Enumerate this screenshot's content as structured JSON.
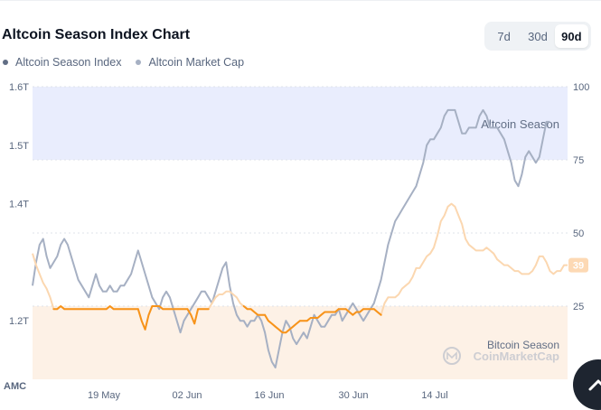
{
  "header": {
    "title": "Altcoin Season Index Chart",
    "ranges": [
      "7d",
      "30d",
      "90d"
    ],
    "active_range": "90d"
  },
  "legend": {
    "items": [
      {
        "label": "Altcoin Season Index",
        "color": "#616e85"
      },
      {
        "label": "Altcoin Market Cap",
        "color": "#a6b0c3"
      }
    ]
  },
  "zones": {
    "altcoin_season": {
      "label": "Altcoin Season",
      "from": 75,
      "to": 100,
      "color": "#e9edfd"
    },
    "bitcoin_season": {
      "label": "Bitcoin Season",
      "from": 0,
      "to": 25,
      "color": "#fdf1e6"
    }
  },
  "watermark": {
    "brand": "CoinMarketCap"
  },
  "corner_label": "AMC",
  "current_value_badge": "39",
  "colors": {
    "index_line": "#f7931a",
    "index_line_light": "#fbd7b0",
    "mcap_line": "#a6b0c3",
    "badge": "#fdd9b4"
  },
  "chart_data": {
    "type": "line",
    "x_ticks": [
      "19 May",
      "02 Jun",
      "16 Jun",
      "30 Jun",
      "14 Jul"
    ],
    "y_left": {
      "ticks": [
        "1.2T",
        "1.4T",
        "1.5T",
        "1.6T"
      ],
      "tick_values": [
        1.2,
        1.4,
        1.5,
        1.6
      ],
      "range": [
        1.1,
        1.6
      ]
    },
    "y_right": {
      "ticks": [
        "25",
        "50",
        "75",
        "100"
      ],
      "tick_values": [
        25,
        50,
        75,
        100
      ],
      "range": [
        0,
        100
      ]
    },
    "series": [
      {
        "name": "Altcoin Season Index",
        "axis": "right",
        "values": [
          43,
          39,
          36,
          33,
          31,
          28,
          24,
          24,
          25,
          24,
          24,
          24,
          24,
          24,
          24,
          24,
          24,
          24,
          24,
          24,
          24,
          24,
          25,
          24,
          24,
          24,
          24,
          24,
          24,
          24,
          24,
          20,
          17,
          22,
          25,
          25,
          25,
          24,
          24,
          24,
          24,
          24,
          24,
          24,
          24,
          22,
          19,
          24,
          24,
          24,
          24,
          26,
          28,
          29,
          29,
          30,
          30,
          29,
          28,
          26,
          25,
          24,
          24,
          23,
          22,
          22,
          22,
          20,
          19,
          18,
          17,
          16,
          16,
          17,
          18,
          19,
          20,
          20,
          20,
          21,
          21,
          21,
          22,
          23,
          23,
          23,
          23,
          24,
          24,
          24,
          23,
          22,
          23,
          23,
          24,
          24,
          24,
          24,
          23,
          22,
          26,
          28,
          28,
          28,
          29,
          31,
          32,
          33,
          35,
          38,
          38,
          40,
          42,
          43,
          45,
          49,
          54,
          56,
          59,
          60,
          59,
          56,
          53,
          48,
          46,
          45,
          44,
          44,
          44,
          45,
          44,
          43,
          41,
          40,
          39,
          39,
          38,
          37,
          37,
          36,
          36,
          36,
          37,
          39,
          42,
          42,
          40,
          37,
          36,
          37,
          37,
          39,
          39
        ]
      },
      {
        "name": "Altcoin Market Cap",
        "axis": "left",
        "values": [
          1.26,
          1.3,
          1.33,
          1.34,
          1.31,
          1.29,
          1.3,
          1.31,
          1.33,
          1.34,
          1.33,
          1.31,
          1.29,
          1.27,
          1.26,
          1.25,
          1.24,
          1.26,
          1.28,
          1.26,
          1.25,
          1.25,
          1.26,
          1.25,
          1.25,
          1.26,
          1.26,
          1.27,
          1.28,
          1.3,
          1.32,
          1.3,
          1.28,
          1.26,
          1.24,
          1.23,
          1.22,
          1.24,
          1.25,
          1.24,
          1.22,
          1.2,
          1.18,
          1.2,
          1.21,
          1.22,
          1.23,
          1.24,
          1.25,
          1.25,
          1.24,
          1.23,
          1.25,
          1.27,
          1.29,
          1.3,
          1.26,
          1.23,
          1.21,
          1.2,
          1.2,
          1.19,
          1.2,
          1.2,
          1.21,
          1.2,
          1.18,
          1.15,
          1.13,
          1.12,
          1.15,
          1.18,
          1.2,
          1.19,
          1.17,
          1.16,
          1.17,
          1.18,
          1.17,
          1.19,
          1.21,
          1.2,
          1.19,
          1.19,
          1.2,
          1.21,
          1.21,
          1.22,
          1.2,
          1.21,
          1.22,
          1.23,
          1.22,
          1.21,
          1.2,
          1.21,
          1.22,
          1.23,
          1.25,
          1.27,
          1.3,
          1.33,
          1.35,
          1.37,
          1.38,
          1.39,
          1.4,
          1.41,
          1.42,
          1.43,
          1.45,
          1.47,
          1.5,
          1.51,
          1.51,
          1.52,
          1.53,
          1.55,
          1.56,
          1.56,
          1.56,
          1.54,
          1.52,
          1.52,
          1.53,
          1.53,
          1.53,
          1.55,
          1.56,
          1.55,
          1.53,
          1.53,
          1.53,
          1.52,
          1.51,
          1.49,
          1.47,
          1.44,
          1.43,
          1.45,
          1.48,
          1.49,
          1.48,
          1.47,
          1.48,
          1.51,
          1.54,
          1.54
        ]
      }
    ]
  }
}
